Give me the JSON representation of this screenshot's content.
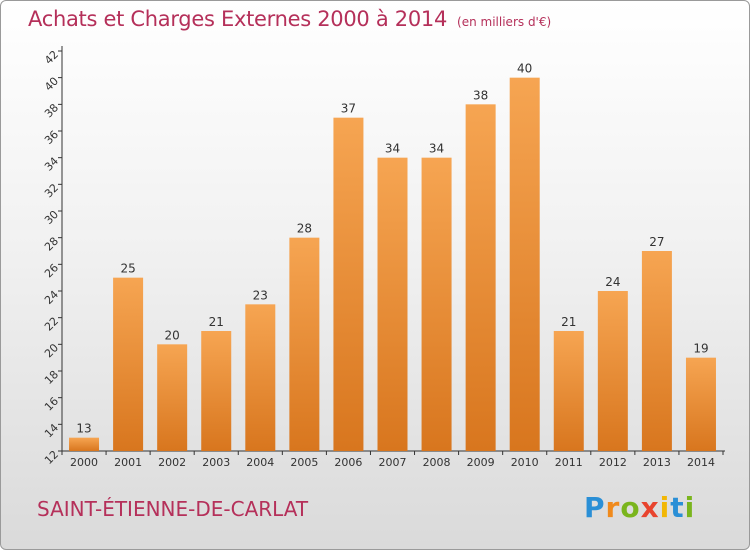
{
  "header": {
    "title": "Achats et Charges Externes 2000 à 2014",
    "unit": "(en milliers d'€)"
  },
  "footer": {
    "commune": "SAINT-ÉTIENNE-DE-CARLAT",
    "logo_text": "Proxiti"
  },
  "colors": {
    "title": "#b5305a",
    "bar_top": "#f6a552",
    "bar_bottom": "#d8761e",
    "axis": "#333333"
  },
  "chart_data": {
    "type": "bar",
    "title": "Achats et Charges Externes 2000 à 2014",
    "subtitle": "(en milliers d'€)",
    "categories": [
      "2000",
      "2001",
      "2002",
      "2003",
      "2004",
      "2005",
      "2006",
      "2007",
      "2008",
      "2009",
      "2010",
      "2011",
      "2012",
      "2013",
      "2014"
    ],
    "values": [
      13,
      25,
      20,
      21,
      23,
      28,
      37,
      34,
      34,
      38,
      40,
      21,
      24,
      27,
      19
    ],
    "ylim": [
      12,
      42
    ],
    "yticks": [
      12,
      14,
      16,
      18,
      20,
      22,
      24,
      26,
      28,
      30,
      32,
      34,
      36,
      38,
      40,
      42
    ],
    "grid": false,
    "data_labels": true
  }
}
